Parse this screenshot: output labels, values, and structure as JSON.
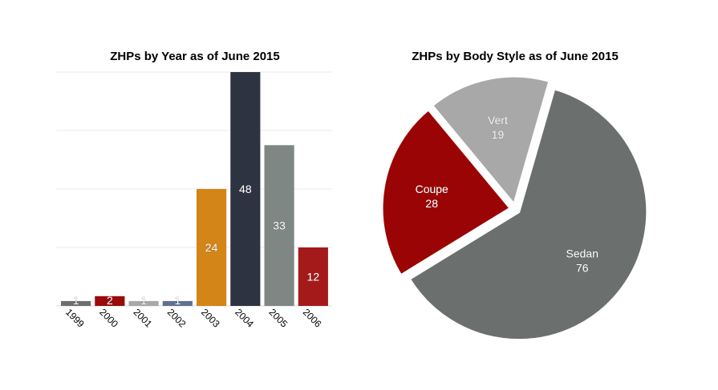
{
  "chart_data": [
    {
      "type": "bar",
      "title": "ZHPs by Year as of June 2015",
      "xlabel": "",
      "ylabel": "",
      "categories": [
        "1999",
        "2000",
        "2001",
        "2002",
        "2003",
        "2004",
        "2005",
        "2006"
      ],
      "values": [
        1,
        2,
        1,
        1,
        24,
        48,
        33,
        12
      ],
      "data_labels": [
        "1",
        "2",
        "1",
        "1",
        "24",
        "48",
        "33",
        "12"
      ],
      "colors": [
        "#6b6f6d",
        "#9b0a0a",
        "#a8a8a8",
        "#5e7193",
        "#d38517",
        "#2e3341",
        "#7f8784",
        "#a41a1a"
      ],
      "ylim": [
        0,
        48
      ],
      "grid": true,
      "legend": "none"
    },
    {
      "type": "pie",
      "title": "ZHPs by Body Style as of June 2015",
      "labels": [
        "Sedan",
        "Coupe",
        "Vert"
      ],
      "values": [
        76,
        28,
        19
      ],
      "value_labels": [
        "76",
        "28",
        "19"
      ],
      "colors": [
        "#6b6f6d",
        "#9b0404",
        "#a8a8a8"
      ],
      "exploded": true,
      "legend": "none"
    }
  ]
}
